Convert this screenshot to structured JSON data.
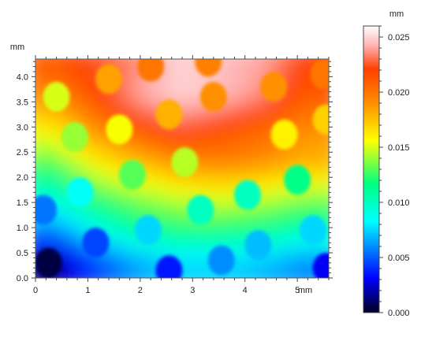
{
  "chart_data": {
    "type": "heatmap",
    "title": "",
    "x_axis": {
      "unit_label": "mm",
      "range": [
        0,
        5.6
      ],
      "ticks": [
        {
          "value": 0,
          "label": "0"
        },
        {
          "value": 1,
          "label": "1"
        },
        {
          "value": 2,
          "label": "2"
        },
        {
          "value": 3,
          "label": "3"
        },
        {
          "value": 4,
          "label": "4"
        },
        {
          "value": 5,
          "label": "5"
        }
      ]
    },
    "y_axis": {
      "unit_label": "mm",
      "range": [
        0,
        4.35
      ],
      "ticks": [
        {
          "value": 0.0,
          "label": "0.0"
        },
        {
          "value": 0.5,
          "label": "0.5"
        },
        {
          "value": 1.0,
          "label": "1.0"
        },
        {
          "value": 1.5,
          "label": "1.5"
        },
        {
          "value": 2.0,
          "label": "2.0"
        },
        {
          "value": 2.5,
          "label": "2.5"
        },
        {
          "value": 3.0,
          "label": "3.0"
        },
        {
          "value": 3.5,
          "label": "3.5"
        },
        {
          "value": 4.0,
          "label": "4.0"
        }
      ]
    },
    "colorbar": {
      "unit_label": "mm",
      "range": [
        0,
        0.026
      ],
      "ticks": [
        {
          "value": 0.0,
          "label": "0.000"
        },
        {
          "value": 0.005,
          "label": "0.005"
        },
        {
          "value": 0.01,
          "label": "0.010"
        },
        {
          "value": 0.015,
          "label": "0.015"
        },
        {
          "value": 0.02,
          "label": "0.020"
        },
        {
          "value": 0.025,
          "label": "0.025"
        }
      ],
      "colormap": [
        {
          "stop": 0.0,
          "color": "#000022"
        },
        {
          "stop": 0.12,
          "color": "#0000ff"
        },
        {
          "stop": 0.32,
          "color": "#00ffff"
        },
        {
          "stop": 0.45,
          "color": "#00ff80"
        },
        {
          "stop": 0.6,
          "color": "#ffff00"
        },
        {
          "stop": 0.75,
          "color": "#ff8000"
        },
        {
          "stop": 0.85,
          "color": "#ff4000"
        },
        {
          "stop": 0.93,
          "color": "#ffb0b0"
        },
        {
          "stop": 1.0,
          "color": "#ffffff"
        }
      ]
    },
    "surface_height_mm": {
      "x": [
        0.35,
        1.15,
        1.95,
        2.75,
        3.55,
        4.35,
        5.15
      ],
      "y": [
        0.35,
        1.0,
        1.65,
        2.3,
        2.95,
        3.6,
        4.2
      ],
      "z": [
        [
          0.0015,
          0.0045,
          0.0065,
          0.0075,
          0.0075,
          0.007,
          0.006
        ],
        [
          0.006,
          0.009,
          0.011,
          0.012,
          0.012,
          0.0115,
          0.0105
        ],
        [
          0.0095,
          0.0125,
          0.014,
          0.015,
          0.0155,
          0.015,
          0.014
        ],
        [
          0.013,
          0.016,
          0.0175,
          0.019,
          0.0195,
          0.019,
          0.018
        ],
        [
          0.016,
          0.019,
          0.021,
          0.0225,
          0.0215,
          0.0205,
          0.019
        ],
        [
          0.019,
          0.0215,
          0.024,
          0.025,
          0.0245,
          0.0235,
          0.021
        ],
        [
          0.021,
          0.0225,
          0.0235,
          0.025,
          0.0245,
          0.024,
          0.022
        ]
      ]
    },
    "dimples": [
      {
        "x": 0.25,
        "y": 0.3,
        "value": 0.0005
      },
      {
        "x": 1.15,
        "y": 0.7,
        "value": 0.0045
      },
      {
        "x": 2.55,
        "y": 0.15,
        "value": 0.0035
      },
      {
        "x": 3.55,
        "y": 0.35,
        "value": 0.006
      },
      {
        "x": 5.55,
        "y": 0.2,
        "value": 0.003
      },
      {
        "x": 2.15,
        "y": 0.95,
        "value": 0.0075
      },
      {
        "x": 4.25,
        "y": 0.65,
        "value": 0.007
      },
      {
        "x": 5.3,
        "y": 0.95,
        "value": 0.0075
      },
      {
        "x": 0.15,
        "y": 1.35,
        "value": 0.0055
      },
      {
        "x": 0.85,
        "y": 1.7,
        "value": 0.0085
      },
      {
        "x": 3.15,
        "y": 1.35,
        "value": 0.01
      },
      {
        "x": 4.05,
        "y": 1.65,
        "value": 0.01
      },
      {
        "x": 1.85,
        "y": 2.05,
        "value": 0.013
      },
      {
        "x": 5.0,
        "y": 1.95,
        "value": 0.0115
      },
      {
        "x": 0.75,
        "y": 2.8,
        "value": 0.014
      },
      {
        "x": 2.85,
        "y": 2.3,
        "value": 0.0145
      },
      {
        "x": 1.6,
        "y": 2.95,
        "value": 0.0155
      },
      {
        "x": 4.75,
        "y": 2.85,
        "value": 0.016
      },
      {
        "x": 0.4,
        "y": 3.6,
        "value": 0.015
      },
      {
        "x": 2.55,
        "y": 3.25,
        "value": 0.018
      },
      {
        "x": 5.55,
        "y": 3.15,
        "value": 0.017
      },
      {
        "x": 1.4,
        "y": 3.95,
        "value": 0.0185
      },
      {
        "x": 3.4,
        "y": 3.6,
        "value": 0.019
      },
      {
        "x": 4.55,
        "y": 3.8,
        "value": 0.019
      },
      {
        "x": 2.2,
        "y": 4.2,
        "value": 0.02
      },
      {
        "x": 3.3,
        "y": 4.3,
        "value": 0.0195
      },
      {
        "x": 5.5,
        "y": 4.05,
        "value": 0.02
      }
    ]
  }
}
